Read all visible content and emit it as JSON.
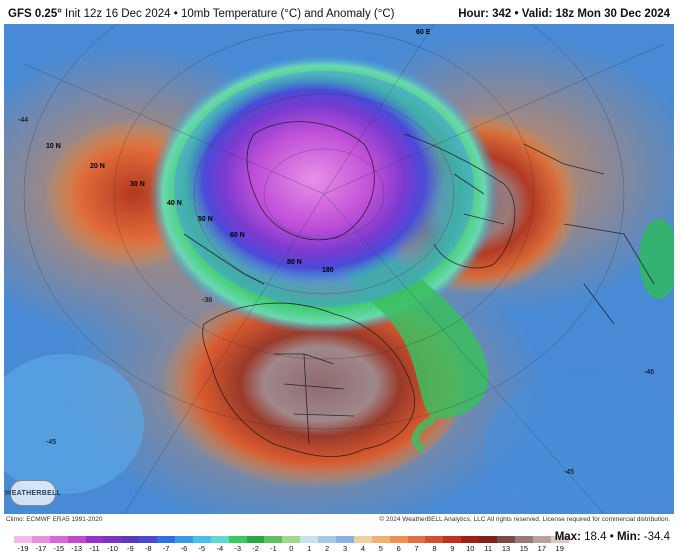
{
  "header": {
    "model": "GFS 0.25°",
    "init": "Init 12z 16 Dec 2024",
    "separator": "•",
    "product": "10mb Temperature (°C) and Anomaly (°C)",
    "hour_label": "Hour:",
    "hour_value": "342",
    "valid_label": "Valid:",
    "valid_value": "18z Mon 30 Dec 2024"
  },
  "map": {
    "lat_labels": [
      "10 N",
      "20 N",
      "30 N",
      "40 N",
      "50 N",
      "60 N",
      "80 N"
    ],
    "lon_labels": [
      "180",
      "60 E"
    ],
    "sample_values": [
      "-44",
      "-38",
      "-45",
      "-45",
      "-46"
    ]
  },
  "logo": {
    "text": "WEATHERBELL"
  },
  "footer": {
    "climo": "Climo: ECMWF ERA5 1991-2020",
    "copyright": "© 2024 WeatherBELL Analytics, LLC All rights reserved. License required for commercial distribution."
  },
  "legend": {
    "ticks": [
      "-19",
      "-17",
      "-15",
      "-13",
      "-11",
      "-10",
      "-9",
      "-8",
      "-7",
      "-6",
      "-5",
      "-4",
      "-3",
      "-2",
      "-1",
      "0",
      "1",
      "2",
      "3",
      "4",
      "5",
      "6",
      "7",
      "8",
      "9",
      "10",
      "11",
      "13",
      "15",
      "17",
      "19"
    ],
    "colors": [
      "#f2b8e8",
      "#e890e0",
      "#d868d8",
      "#c048d0",
      "#9a32c8",
      "#7a32c8",
      "#5a3ab8",
      "#4a4ad0",
      "#2f6fe0",
      "#3a9ae8",
      "#4ac0e8",
      "#60d8d0",
      "#3ac860",
      "#2aa848",
      "#60c060",
      "#a0d890",
      "#c8e0f0",
      "#a8c8e8",
      "#88b0e0",
      "#f0d0a0",
      "#f0b070",
      "#f09050",
      "#e07040",
      "#d05030",
      "#c03020",
      "#a02018",
      "#802018",
      "#7a4a48",
      "#9a7a78",
      "#b8a0a0",
      "#d8c8c8"
    ]
  },
  "stats": {
    "max_label": "Max:",
    "max_value": "18.4",
    "min_label": "Min:",
    "min_value": "-34.4"
  }
}
